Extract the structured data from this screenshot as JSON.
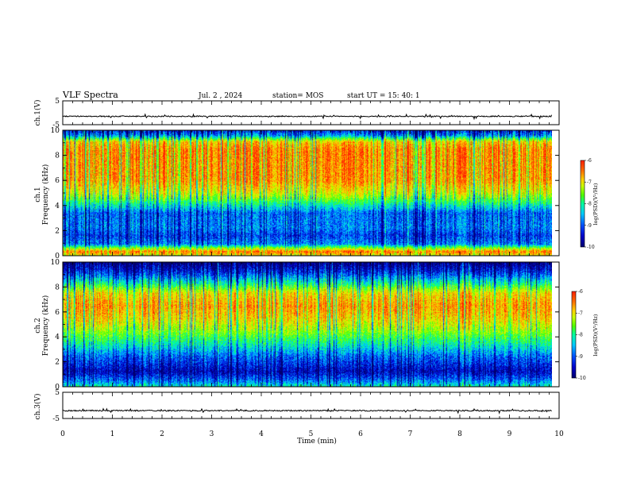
{
  "header": {
    "title": "VLF Spectra",
    "date": "Jul. 2 , 2024",
    "station": "station= MOS",
    "start": "start UT =  15: 40: 1"
  },
  "colors": {
    "spectrogram_scale": [
      "#00006e",
      "#0000c8",
      "#0050ff",
      "#00c8ff",
      "#00ffa0",
      "#50ff00",
      "#c8ff00",
      "#ffd000",
      "#ff7000",
      "#ff1e00"
    ],
    "trace": "#000000"
  },
  "chart_data": [
    {
      "type": "line",
      "panel": "ch1-voltage",
      "ylabel": "ch.1(V)",
      "ylim": [
        -5,
        5
      ],
      "yticks": [
        "5",
        "-5"
      ],
      "series": [
        {
          "baseline": -1.5
        }
      ]
    },
    {
      "type": "heatmap",
      "panel": "ch1-spectrogram",
      "ylabel_channel": "ch.1",
      "ylabel": "Frequency (kHz)",
      "ylim": [
        0,
        10
      ],
      "yticks": [
        "0",
        "2",
        "4",
        "6",
        "8",
        "10"
      ],
      "xlim": [
        0,
        10
      ],
      "colorbar": {
        "label": "log(PSD)(V²/Hz)",
        "range": [
          -10,
          -6
        ],
        "ticks": [
          "-6",
          "-7",
          "-8",
          "-9",
          "-10"
        ]
      },
      "intensity_profile_khz": [
        [
          0,
          -7.0
        ],
        [
          0.3,
          -6.4
        ],
        [
          0.9,
          -8.9
        ],
        [
          1.6,
          -9.2
        ],
        [
          2.2,
          -8.9
        ],
        [
          3.4,
          -9.0
        ],
        [
          4.2,
          -8.1
        ],
        [
          5.0,
          -7.2
        ],
        [
          6.0,
          -6.6
        ],
        [
          8.5,
          -6.5
        ],
        [
          9.1,
          -6.9
        ],
        [
          9.6,
          -8.8
        ],
        [
          10,
          -9.4
        ]
      ]
    },
    {
      "type": "heatmap",
      "panel": "ch2-spectrogram",
      "ylabel_channel": "ch.2",
      "ylabel": "Frequency (kHz)",
      "ylim": [
        0,
        10
      ],
      "yticks": [
        "0",
        "2",
        "4",
        "6",
        "8",
        "10"
      ],
      "xlim": [
        0,
        10
      ],
      "colorbar": {
        "label": "log(PSD)(V²/Hz)",
        "range": [
          -10,
          -6
        ],
        "ticks": [
          "-6",
          "-7",
          "-8",
          "-9",
          "-10"
        ]
      },
      "intensity_profile_khz": [
        [
          0,
          -8.3
        ],
        [
          0.4,
          -8.9
        ],
        [
          1.2,
          -9.6
        ],
        [
          2.4,
          -9.0
        ],
        [
          3.5,
          -8.2
        ],
        [
          4.5,
          -7.5
        ],
        [
          5.5,
          -6.9
        ],
        [
          6.5,
          -6.6
        ],
        [
          7.5,
          -7.0
        ],
        [
          8.3,
          -8.2
        ],
        [
          9.2,
          -9.3
        ],
        [
          10,
          -9.9
        ]
      ]
    },
    {
      "type": "line",
      "panel": "ch3-voltage",
      "ylabel": "ch.3(V)",
      "ylim": [
        -5,
        5
      ],
      "yticks": [
        "5",
        "-5"
      ],
      "series": [
        {
          "baseline": -2.0
        }
      ]
    }
  ],
  "xaxis": {
    "label": "Time (min)",
    "range": [
      0,
      10
    ],
    "ticks": [
      "0",
      "1",
      "2",
      "3",
      "4",
      "5",
      "6",
      "7",
      "8",
      "9",
      "10"
    ],
    "data_end_min": 9.85
  }
}
